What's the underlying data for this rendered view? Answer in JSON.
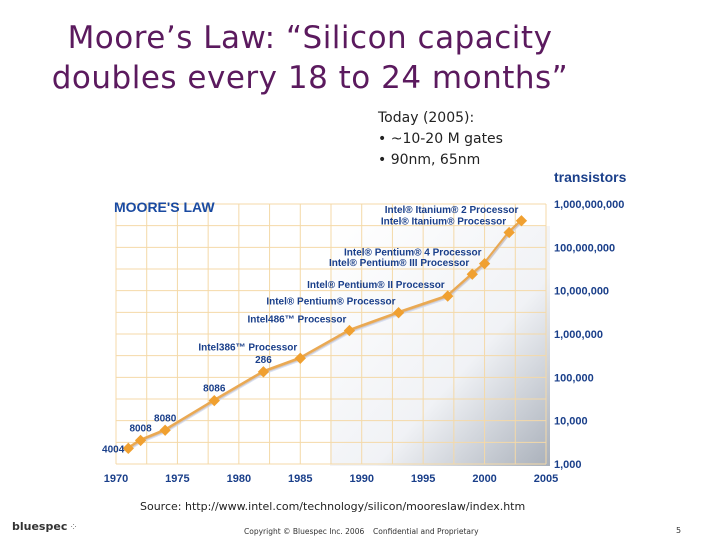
{
  "slide": {
    "title_line1": "Moore’s Law: “Silicon capacity",
    "title_line2": "doubles every 18 to 24 months”",
    "today_heading": "Today (2005):",
    "today_bullets": [
      "• ~10-20 M gates",
      "• 90nm, 65nm"
    ],
    "source": "Source: http://www.intel.com/technology/silicon/mooreslaw/index.htm",
    "logo_text": "bluespec",
    "copyright": "Copyright © Bluespec Inc. 2006",
    "confidential": "Confidential and Proprietary",
    "page_number": "5"
  },
  "chart_data": {
    "type": "line",
    "title": "MOORE'S LAW",
    "ylabel": "transistors",
    "scale": "log",
    "x_ticks": [
      "1970",
      "1975",
      "1980",
      "1985",
      "1990",
      "1995",
      "2000",
      "2005"
    ],
    "y_ticks": [
      "1,000",
      "10,000",
      "100,000",
      "1,000,000",
      "10,000,000",
      "100,000,000",
      "1,000,000,000"
    ],
    "xlim": [
      1970,
      2005
    ],
    "ylim": [
      1000,
      1000000000
    ],
    "line_color": "#e8a040",
    "marker_color": "#f0a030",
    "points": [
      {
        "label": "4004",
        "x": 1971,
        "y": 2300
      },
      {
        "label": "8008",
        "x": 1972,
        "y": 3500
      },
      {
        "label": "8080",
        "x": 1974,
        "y": 6000
      },
      {
        "label": "8086",
        "x": 1978,
        "y": 29000
      },
      {
        "label": "286",
        "x": 1982,
        "y": 134000
      },
      {
        "label": "Intel386™ Processor",
        "x": 1985,
        "y": 275000
      },
      {
        "label": "Intel486™ Processor",
        "x": 1989,
        "y": 1200000
      },
      {
        "label": "Intel® Pentium® Processor",
        "x": 1993,
        "y": 3100000
      },
      {
        "label": "Intel® Pentium® II Processor",
        "x": 1997,
        "y": 7500000
      },
      {
        "label": "Intel® Pentium® III Processor",
        "x": 1999,
        "y": 24000000
      },
      {
        "label": "Intel® Pentium® 4 Processor",
        "x": 2000,
        "y": 42000000
      },
      {
        "label": "Intel® Itanium® Processor",
        "x": 2002,
        "y": 220000000
      },
      {
        "label": "Intel® Itanium® 2 Processor",
        "x": 2003,
        "y": 410000000
      }
    ]
  }
}
